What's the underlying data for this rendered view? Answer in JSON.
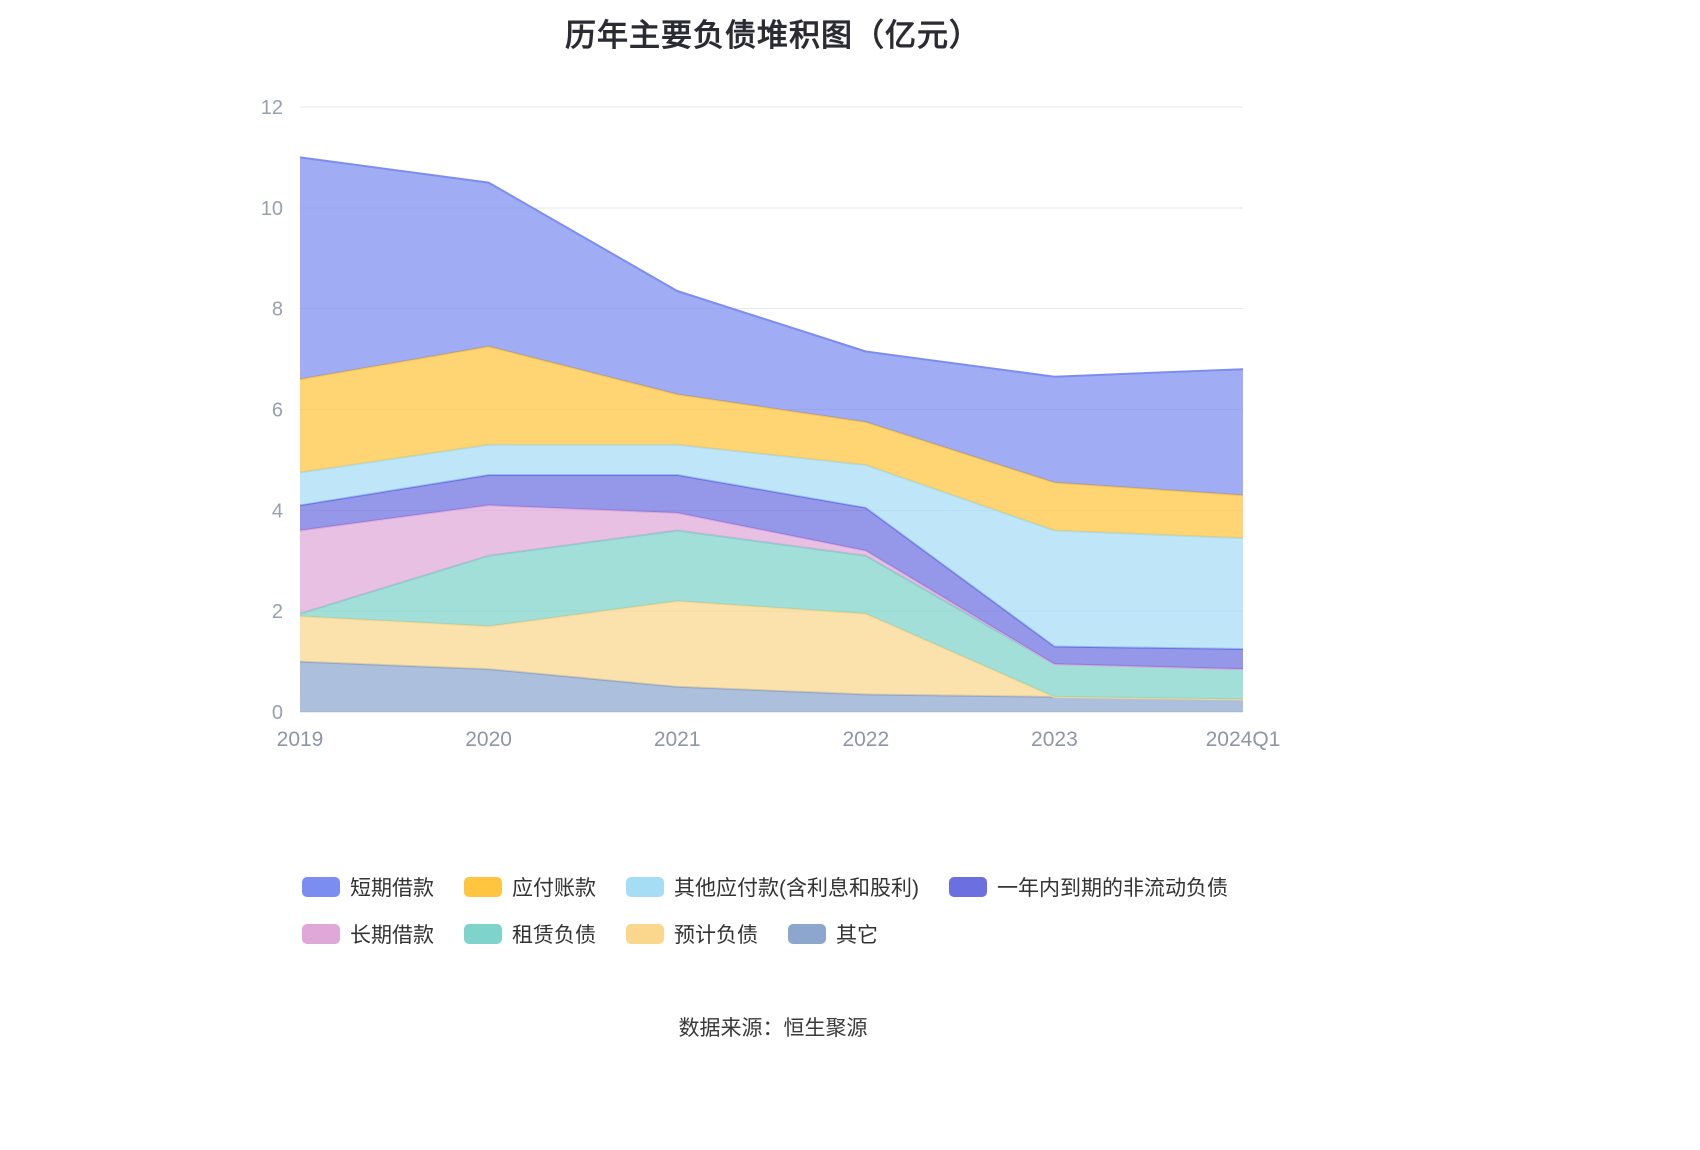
{
  "page": {
    "source_note": "数据来源：恒生聚源"
  },
  "chart_data": {
    "type": "area",
    "stacked": true,
    "title": "历年主要负债堆积图（亿元）",
    "x": [
      "2019",
      "2020",
      "2021",
      "2022",
      "2023",
      "2024Q1"
    ],
    "y_axis": {
      "min": 0,
      "max": 12,
      "tick_interval": 2
    },
    "grid": true,
    "legend_position": "bottom",
    "area_opacity": 0.72,
    "series": [
      {
        "key": "others",
        "name": "其它",
        "color": "#8CA6CE",
        "values": [
          1.0,
          0.85,
          0.5,
          0.35,
          0.3,
          0.25
        ]
      },
      {
        "key": "estimated-liabilities",
        "name": "预计负债",
        "color": "#FAD78D",
        "values": [
          0.9,
          0.85,
          1.7,
          1.6,
          0.0,
          0.0
        ]
      },
      {
        "key": "lease-liabilities",
        "name": "租赁负债",
        "color": "#7ED3CA",
        "values": [
          0.05,
          1.4,
          1.4,
          1.15,
          0.65,
          0.6
        ]
      },
      {
        "key": "long-term-loans",
        "name": "长期借款",
        "color": "#DFA8D8",
        "values": [
          1.65,
          1.0,
          0.35,
          0.1,
          0.0,
          0.0
        ]
      },
      {
        "key": "noncurrent-liabilities-due-within-1y",
        "name": "一年内到期的非流动负债",
        "color": "#6C6FE0",
        "values": [
          0.5,
          0.6,
          0.75,
          0.85,
          0.35,
          0.4
        ]
      },
      {
        "key": "other-payables",
        "name": "其他应付款(含利息和股利)",
        "color": "#A5DDF5",
        "values": [
          0.65,
          0.6,
          0.6,
          0.85,
          2.3,
          2.2
        ]
      },
      {
        "key": "accounts-payable",
        "name": "应付账款",
        "color": "#FFC53E",
        "values": [
          1.85,
          1.95,
          1.0,
          0.85,
          0.95,
          0.85
        ]
      },
      {
        "key": "short-term-loans",
        "name": "短期借款",
        "color": "#7B8DF0",
        "values": [
          4.4,
          3.25,
          2.05,
          1.4,
          2.1,
          2.5
        ]
      }
    ],
    "legend_rows": [
      [
        "short-term-loans",
        "accounts-payable",
        "other-payables",
        "noncurrent-liabilities-due-within-1y"
      ],
      [
        "long-term-loans",
        "lease-liabilities",
        "estimated-liabilities",
        "others"
      ]
    ]
  }
}
